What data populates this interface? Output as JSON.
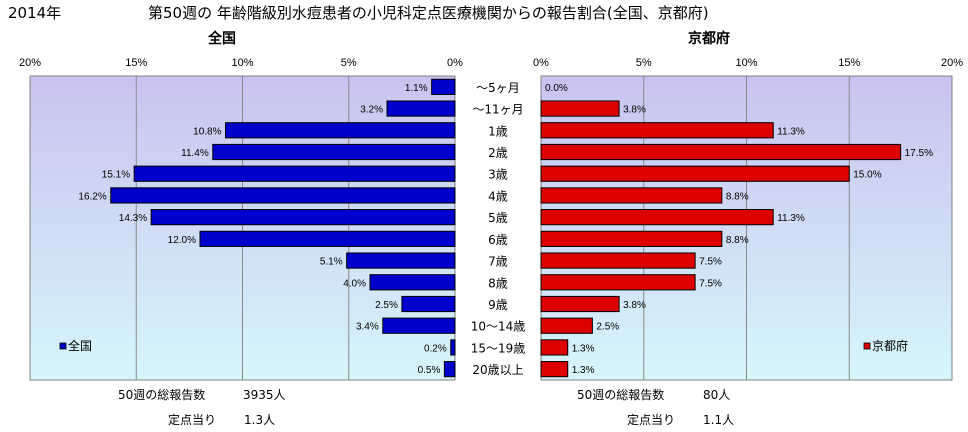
{
  "header": {
    "year": "2014年",
    "title": "第50週の 年齢階級別水痘患者の小児科定点医療機関からの報告割合(全国、京都府)"
  },
  "age_groups": [
    "～5ヶ月",
    "～11ヶ月",
    "1歳",
    "2歳",
    "3歳",
    "4歳",
    "5歳",
    "6歳",
    "7歳",
    "8歳",
    "9歳",
    "10～14歳",
    "15～19歳",
    "20歳以上"
  ],
  "chart_data": [
    {
      "type": "bar",
      "orientation": "horizontal",
      "title": "全国",
      "x_ticks": [
        "20%",
        "15%",
        "10%",
        "5%",
        "0%"
      ],
      "xlim": [
        0,
        20
      ],
      "x_reversed": true,
      "grid": true,
      "legend": {
        "label": "全国",
        "position": "bottom-left"
      },
      "colors": {
        "bar": "#0000cc",
        "plot_bg_top": "#c9c3ef",
        "plot_bg_bottom": "#d6f6fb"
      },
      "values": [
        1.1,
        3.2,
        10.8,
        11.4,
        15.1,
        16.2,
        14.3,
        12.0,
        5.1,
        4.0,
        2.5,
        3.4,
        0.2,
        0.5
      ],
      "labels": [
        "1.1%",
        "3.2%",
        "10.8%",
        "11.4%",
        "15.1%",
        "16.2%",
        "14.3%",
        "12.0%",
        "5.1%",
        "4.0%",
        "2.5%",
        "3.4%",
        "0.2%",
        "0.5%"
      ]
    },
    {
      "type": "bar",
      "orientation": "horizontal",
      "title": "京都府",
      "x_ticks": [
        "0%",
        "5%",
        "10%",
        "15%",
        "20%"
      ],
      "xlim": [
        0,
        20
      ],
      "x_reversed": false,
      "grid": true,
      "legend": {
        "label": "京都府",
        "position": "bottom-right"
      },
      "colors": {
        "bar": "#dd0000",
        "plot_bg_top": "#c9c3ef",
        "plot_bg_bottom": "#d6f6fb"
      },
      "values": [
        0.0,
        3.8,
        11.3,
        17.5,
        15.0,
        8.8,
        11.3,
        8.8,
        7.5,
        7.5,
        3.8,
        2.5,
        1.3,
        1.3
      ],
      "labels": [
        "0.0%",
        "3.8%",
        "11.3%",
        "17.5%",
        "15.0%",
        "8.8%",
        "11.3%",
        "8.8%",
        "7.5%",
        "7.5%",
        "3.8%",
        "2.5%",
        "1.3%",
        "1.3%"
      ]
    }
  ],
  "footer": {
    "national": {
      "total_label": "50週の総報告数",
      "total_value": "3935人",
      "per_label": "定点当り",
      "per_value": "1.3人"
    },
    "kyoto": {
      "total_label": "50週の総報告数",
      "total_value": "80人",
      "per_label": "定点当り",
      "per_value": "1.1人"
    }
  }
}
